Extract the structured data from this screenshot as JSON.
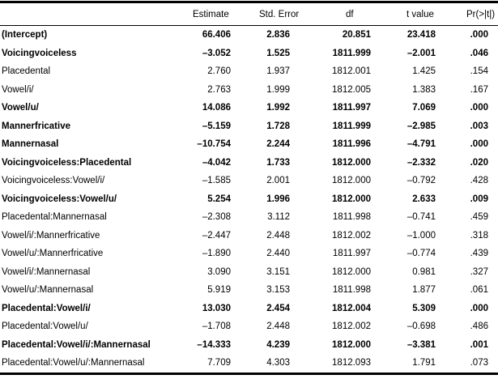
{
  "colors": {
    "text": "#000000",
    "background": "#ffffff",
    "rule": "#000000"
  },
  "table": {
    "columns": [
      "",
      "Estimate",
      "Std. Error",
      "df",
      "t value",
      "Pr(>|t|)"
    ],
    "rows": [
      {
        "label": "(Intercept)",
        "bold": true,
        "values": [
          "66.406",
          "2.836",
          "20.851",
          "23.418",
          ".000"
        ]
      },
      {
        "label": "Voicingvoiceless",
        "bold": true,
        "values": [
          "–3.052",
          "1.525",
          "1811.999",
          "–2.001",
          ".046"
        ]
      },
      {
        "label": "Placedental",
        "bold": false,
        "values": [
          "2.760",
          "1.937",
          "1812.001",
          "1.425",
          ".154"
        ]
      },
      {
        "label": "Vowel/i/",
        "bold": false,
        "values": [
          "2.763",
          "1.999",
          "1812.005",
          "1.383",
          ".167"
        ]
      },
      {
        "label": "Vowel/u/",
        "bold": true,
        "values": [
          "14.086",
          "1.992",
          "1811.997",
          "7.069",
          ".000"
        ]
      },
      {
        "label": "Mannerfricative",
        "bold": true,
        "values": [
          "–5.159",
          "1.728",
          "1811.999",
          "–2.985",
          ".003"
        ]
      },
      {
        "label": "Mannernasal",
        "bold": true,
        "values": [
          "–10.754",
          "2.244",
          "1811.996",
          "–4.791",
          ".000"
        ]
      },
      {
        "label": "Voicingvoiceless:Placedental",
        "bold": true,
        "values": [
          "–4.042",
          "1.733",
          "1812.000",
          "–2.332",
          ".020"
        ]
      },
      {
        "label": "Voicingvoiceless:Vowel/i/",
        "bold": false,
        "values": [
          "–1.585",
          "2.001",
          "1812.000",
          "–0.792",
          ".428"
        ]
      },
      {
        "label": "Voicingvoiceless:Vowel/u/",
        "bold": true,
        "values": [
          "5.254",
          "1.996",
          "1812.000",
          "2.633",
          ".009"
        ]
      },
      {
        "label": "Placedental:Mannernasal",
        "bold": false,
        "values": [
          "–2.308",
          "3.112",
          "1811.998",
          "–0.741",
          ".459"
        ]
      },
      {
        "label": "Vowel/i/:Mannerfricative",
        "bold": false,
        "values": [
          "–2.447",
          "2.448",
          "1812.002",
          "–1.000",
          ".318"
        ]
      },
      {
        "label": "Vowel/u/:Mannerfricative",
        "bold": false,
        "values": [
          "–1.890",
          "2.440",
          "1811.997",
          "–0.774",
          ".439"
        ]
      },
      {
        "label": "Vowel/i/:Mannernasal",
        "bold": false,
        "values": [
          "3.090",
          "3.151",
          "1812.000",
          "0.981",
          ".327"
        ]
      },
      {
        "label": "Vowel/u/:Mannernasal",
        "bold": false,
        "values": [
          "5.919",
          "3.153",
          "1811.998",
          "1.877",
          ".061"
        ]
      },
      {
        "label": "Placedental:Vowel/i/",
        "bold": true,
        "values": [
          "13.030",
          "2.454",
          "1812.004",
          "5.309",
          ".000"
        ]
      },
      {
        "label": "Placedental:Vowel/u/",
        "bold": false,
        "values": [
          "–1.708",
          "2.448",
          "1812.002",
          "–0.698",
          ".486"
        ]
      },
      {
        "label": "Placedental:Vowel/i/:Mannernasal",
        "bold": true,
        "values": [
          "–14.333",
          "4.239",
          "1812.000",
          "–3.381",
          ".001"
        ]
      },
      {
        "label": "Placedental:Vowel/u/:Mannernasal",
        "bold": false,
        "values": [
          "7.709",
          "4.303",
          "1812.093",
          "1.791",
          ".073"
        ]
      }
    ]
  }
}
